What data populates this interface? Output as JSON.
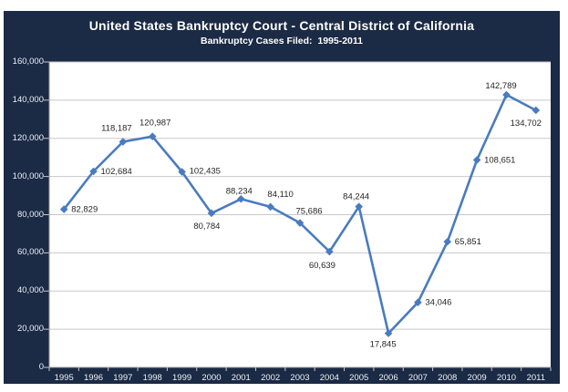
{
  "header": {
    "title": "United States Bankruptcy Court - Central District of California",
    "subtitle": "Bankruptcy Cases Filed:  1995-2011"
  },
  "colors": {
    "panel_bg": "#1b2a45",
    "plot_bg": "#ffffff",
    "line": "#4a7bbf",
    "marker": "#4a7bbf",
    "gridline": "#c8c8c8",
    "axis": "#9a9a9a",
    "tick": "#c3c8d2",
    "data_label": "#262626",
    "axis_label": "#eef1f5",
    "title": "#ffffff"
  },
  "chart_data": {
    "type": "line",
    "title": "United States Bankruptcy Court - Central District of California",
    "subtitle": "Bankruptcy Cases Filed:  1995-2011",
    "categories": [
      "1995",
      "1996",
      "1997",
      "1998",
      "1999",
      "2000",
      "2001",
      "2002",
      "2003",
      "2004",
      "2005",
      "2006",
      "2007",
      "2008",
      "2009",
      "2010",
      "2011"
    ],
    "values": [
      82829,
      102684,
      118187,
      120987,
      102435,
      80784,
      88234,
      84110,
      75686,
      60639,
      84244,
      17845,
      34046,
      65851,
      108651,
      142789,
      134702
    ],
    "point_labels": [
      "82,829",
      "102,684",
      "118,187",
      "120,987",
      "102,435",
      "80,784",
      "88,234",
      "84,110",
      "75,686",
      "60,639",
      "84,244",
      "17,845",
      "34,046",
      "65,851",
      "108,651",
      "142,789",
      "134,702"
    ],
    "label_offsets": [
      [
        8,
        3,
        "start"
      ],
      [
        8,
        3,
        "start"
      ],
      [
        -7,
        -12,
        "middle"
      ],
      [
        3,
        -12,
        "middle"
      ],
      [
        8,
        2,
        "start"
      ],
      [
        -5,
        17,
        "middle"
      ],
      [
        -2,
        -6,
        "middle"
      ],
      [
        11,
        -11,
        "middle"
      ],
      [
        10,
        -10,
        "middle"
      ],
      [
        -8,
        18,
        "middle"
      ],
      [
        -3,
        -8,
        "middle"
      ],
      [
        -6,
        15,
        "middle"
      ],
      [
        8,
        3,
        "start"
      ],
      [
        8,
        3,
        "start"
      ],
      [
        8,
        3,
        "start"
      ],
      [
        -6,
        -7,
        "middle"
      ],
      [
        -11,
        17,
        "middle"
      ]
    ],
    "xlabel": "",
    "ylabel": "",
    "ylim": [
      0,
      160000
    ],
    "ytick_interval": 20000,
    "yticks": [
      "0",
      "20,000",
      "40,000",
      "60,000",
      "80,000",
      "100,000",
      "120,000",
      "140,000",
      "160,000"
    ],
    "grid": true,
    "legend": "none",
    "marker_shape": "diamond"
  }
}
